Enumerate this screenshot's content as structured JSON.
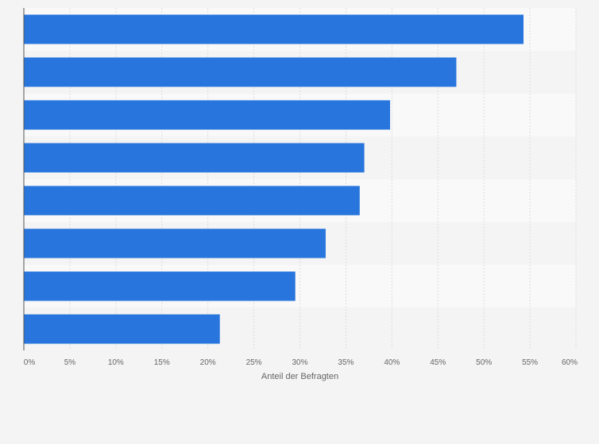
{
  "chart_data": {
    "type": "bar",
    "orientation": "horizontal",
    "title": "",
    "ylabel": "",
    "xlabel": "Anteil der Befragten",
    "categories": [
      "",
      "",
      "",
      "",
      "",
      "",
      "",
      ""
    ],
    "values": [
      54.3,
      47.0,
      39.8,
      37.0,
      36.5,
      32.8,
      29.5,
      21.3
    ],
    "xlim": [
      0,
      60
    ],
    "ticks": [
      0,
      5,
      10,
      15,
      20,
      25,
      30,
      35,
      40,
      45,
      50,
      55,
      60
    ],
    "tick_labels": [
      "0%",
      "5%",
      "10%",
      "15%",
      "20%",
      "25%",
      "30%",
      "35%",
      "40%",
      "45%",
      "50%",
      "55%",
      "60%"
    ],
    "grid": true,
    "colors": {
      "bar": "#2876dd",
      "band_light": "#f9f9f9",
      "band_dark": "#f4f4f4",
      "grid": "#dcdcdc",
      "axis": "#555555",
      "text": "#666666"
    }
  }
}
